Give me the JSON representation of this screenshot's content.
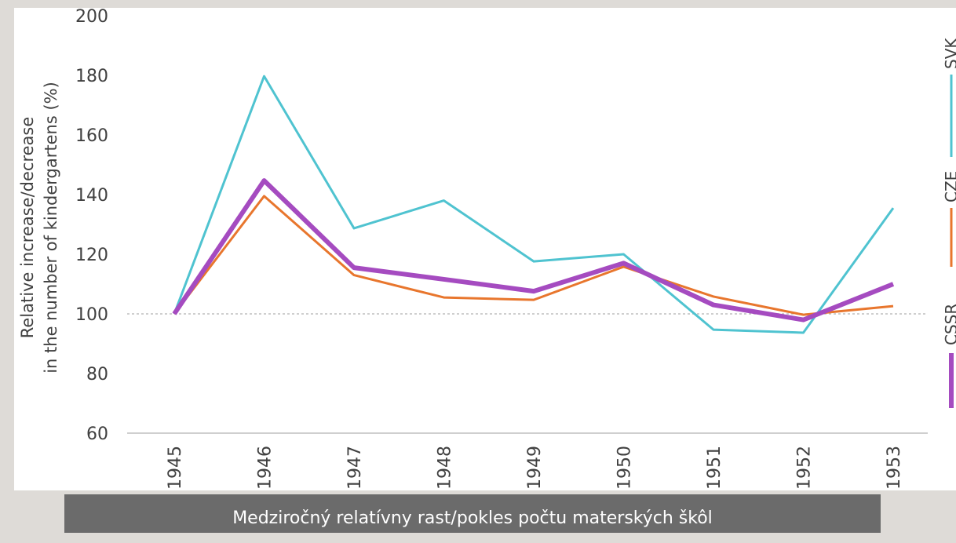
{
  "chart_data": {
    "type": "line",
    "ylabel": [
      "Relative increase/decrease",
      "in the number of kindergartens (%)"
    ],
    "categories": [
      "1945",
      "1946",
      "1947",
      "1948",
      "1949",
      "1950",
      "1951",
      "1952",
      "1953"
    ],
    "series": [
      {
        "name": "SVK",
        "color": "#4fc3d0",
        "values": [
          100,
          179.7,
          128.7,
          138,
          117.6,
          120,
          94.7,
          93.7,
          135.5
        ]
      },
      {
        "name": "CZE",
        "color": "#e8762d",
        "values": [
          100,
          139.5,
          113,
          105.5,
          104.7,
          115.8,
          105.8,
          99.7,
          102.6
        ]
      },
      {
        "name": "CSSR",
        "color": "#a54bc0",
        "values": [
          100,
          144.7,
          115.5,
          111.6,
          107.6,
          117,
          103,
          98,
          110
        ]
      }
    ],
    "ylim": [
      60,
      200
    ],
    "yticks": [
      60,
      80,
      100,
      120,
      140,
      160,
      180,
      200
    ],
    "caption": "Medziročný relatívny rast/pokles počtu materských škôl"
  }
}
